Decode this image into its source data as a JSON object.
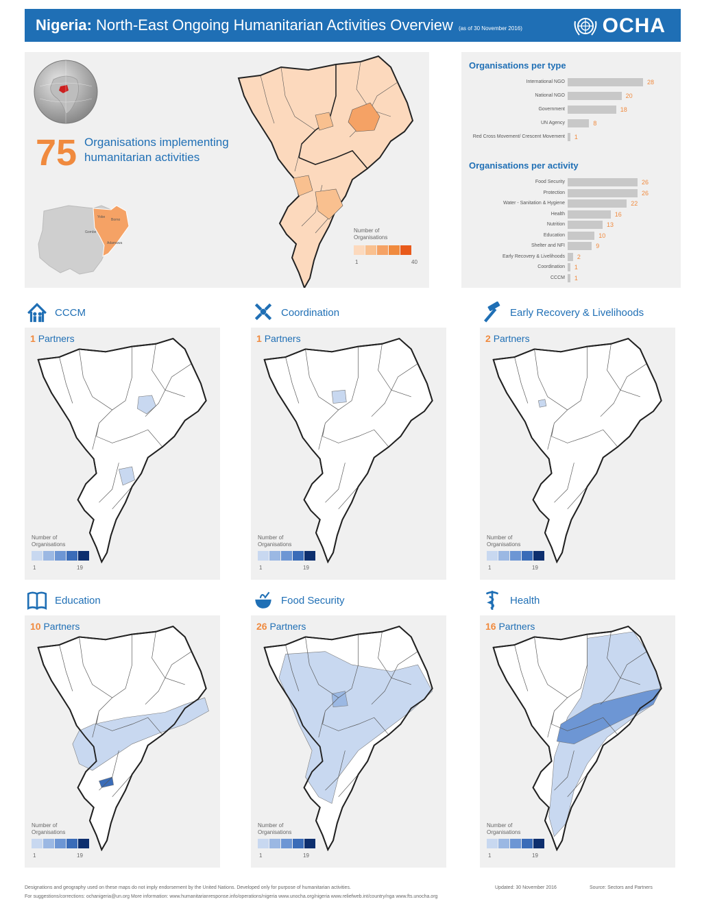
{
  "header": {
    "country": "Nigeria:",
    "title": "North-East Ongoing Humanitarian Activities Overview",
    "as_of": "(as of 30 November 2016)",
    "logo_text": "OCHA"
  },
  "summary": {
    "count": "75",
    "text": "Organisations implementing humanitarian activities",
    "state_labels": [
      "Yobe",
      "Borno",
      "Gombe",
      "Adamawa"
    ],
    "legend_title": "Number of Organisations",
    "legend_min": "1",
    "legend_max": "40",
    "legend_colors": [
      "#fcd9bd",
      "#f9c08f",
      "#f5a265",
      "#f08a3e",
      "#e85a1b"
    ]
  },
  "org_type": {
    "title": "Organisations per type",
    "rows": [
      {
        "label": "International NGO",
        "value": "28",
        "n": 28
      },
      {
        "label": "National NGO",
        "value": "20",
        "n": 20
      },
      {
        "label": "Government",
        "value": "18",
        "n": 18
      },
      {
        "label": "UN Agency",
        "value": "8",
        "n": 8
      },
      {
        "label": "Red Cross Movement/ Crescent Movement",
        "value": "1",
        "n": 1
      }
    ]
  },
  "org_activity": {
    "title": "Organisations per activity",
    "rows": [
      {
        "label": "Food Security",
        "value": "26",
        "n": 26
      },
      {
        "label": "Protection",
        "value": "26",
        "n": 26
      },
      {
        "label": "Water - Sanitation & Hygiene",
        "value": "22",
        "n": 22
      },
      {
        "label": "Health",
        "value": "16",
        "n": 16
      },
      {
        "label": "Nutrition",
        "value": "13",
        "n": 13
      },
      {
        "label": "Education",
        "value": "10",
        "n": 10
      },
      {
        "label": "Shelter and NFI",
        "value": "9",
        "n": 9
      },
      {
        "label": "Early Recovery & Livelihoods",
        "value": "2",
        "n": 2
      },
      {
        "label": "Coordination",
        "value": "1",
        "n": 1
      },
      {
        "label": "CCCM",
        "value": "1",
        "n": 1
      }
    ]
  },
  "sectors": [
    {
      "name": "CCCM",
      "partners_num": "1",
      "partners_label": "Partners",
      "icon": "camp-icon"
    },
    {
      "name": "Coordination",
      "partners_num": "1",
      "partners_label": "Partners",
      "icon": "coordination-icon"
    },
    {
      "name": "Early Recovery & Livelihoods",
      "partners_num": "2",
      "partners_label": "Partners",
      "icon": "hammer-icon"
    },
    {
      "name": "Education",
      "partners_num": "10",
      "partners_label": "Partners",
      "icon": "book-icon"
    },
    {
      "name": "Food Security",
      "partners_num": "26",
      "partners_label": "Partners",
      "icon": "food-bowl-icon"
    },
    {
      "name": "Health",
      "partners_num": "16",
      "partners_label": "Partners",
      "icon": "health-icon"
    }
  ],
  "sector_legend": {
    "title": "Number of Organisations",
    "min": "1",
    "max": "19",
    "colors": [
      "#c8d8f0",
      "#9bb8e3",
      "#6d96d4",
      "#3a6cb8",
      "#0d2f6e"
    ]
  },
  "footer": {
    "line1a": "Designations and geography used on these maps do not imply endorsement by the United Nations. Developed only for purpose of humanitarian activities.",
    "updated": "Updated: 30 November 2016",
    "source": "Source: Sectors and Partners",
    "line2": "For suggestions/corrections: ochanigeria@un.org      More information: www.humanitarianresponse.info/operations/nigeria      www.unocha.org/nigeria      www.reliefweb.int/country/nga      www.fts.unocha.org"
  },
  "colors": {
    "ocha_blue": "#1f6fb5",
    "accent_orange": "#f08a3e"
  }
}
